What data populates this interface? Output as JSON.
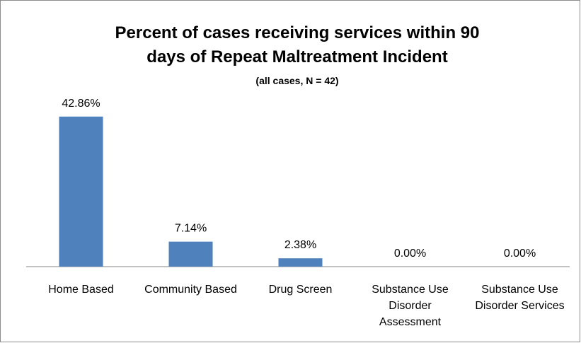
{
  "chart_data": {
    "type": "bar",
    "title": "Percent of cases receiving services within 90 days of Repeat Maltreatment Incident",
    "subtitle": "(all cases, N = 42)",
    "categories": [
      "Home Based",
      "Community Based",
      "Drug Screen",
      "Substance Use Disorder Assessment",
      "Substance Use Disorder Services"
    ],
    "values": [
      42.86,
      7.14,
      2.38,
      0,
      0
    ],
    "value_labels": [
      "42.86%",
      "7.14%",
      "2.38%",
      "0.00%",
      "0.00%"
    ],
    "color": "#4f81bd"
  }
}
